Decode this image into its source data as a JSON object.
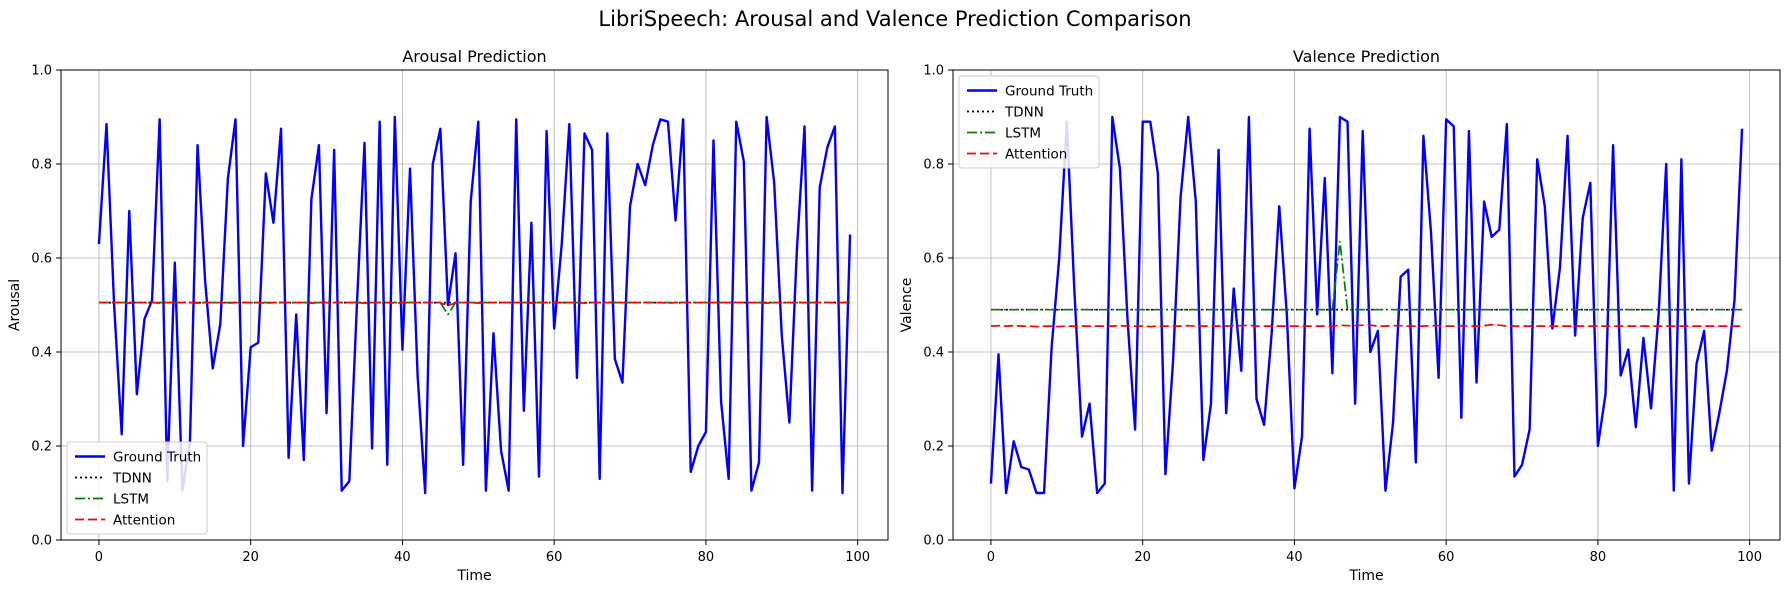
{
  "figure_title": "LibriSpeech: Arousal and Valence Prediction Comparison",
  "colors": {
    "ground_truth": "#0000ff",
    "tdnn": "#000000",
    "lstm": "#008000",
    "attention": "#ff0000",
    "grid": "#b0b0b0"
  },
  "chart_data": [
    {
      "type": "line",
      "title": "Arousal Prediction",
      "xlabel": "Time",
      "ylabel": "Arousal",
      "xlim": [
        -5,
        104
      ],
      "ylim": [
        0,
        1
      ],
      "xticks": [
        0,
        20,
        40,
        60,
        80,
        100
      ],
      "yticks": [
        0.0,
        0.2,
        0.4,
        0.6,
        0.8,
        1.0
      ],
      "xtick_labels": [
        "0",
        "20",
        "40",
        "60",
        "80",
        "100"
      ],
      "ytick_labels": [
        "0.0",
        "0.2",
        "0.4",
        "0.6",
        "0.8",
        "1.0"
      ],
      "grid": true,
      "legend_position": "lower-left",
      "series": [
        {
          "name": "Ground Truth",
          "style": "solid",
          "color": "#0000ff",
          "values": [
            0.63,
            0.885,
            0.5,
            0.225,
            0.7,
            0.31,
            0.47,
            0.51,
            0.895,
            0.125,
            0.59,
            0.105,
            0.21,
            0.84,
            0.55,
            0.365,
            0.46,
            0.77,
            0.895,
            0.2,
            0.41,
            0.42,
            0.78,
            0.675,
            0.875,
            0.175,
            0.48,
            0.17,
            0.725,
            0.84,
            0.27,
            0.83,
            0.105,
            0.125,
            0.5,
            0.845,
            0.195,
            0.89,
            0.16,
            0.9,
            0.405,
            0.79,
            0.35,
            0.1,
            0.8,
            0.875,
            0.5,
            0.61,
            0.16,
            0.72,
            0.89,
            0.105,
            0.44,
            0.19,
            0.105,
            0.895,
            0.275,
            0.675,
            0.135,
            0.87,
            0.45,
            0.63,
            0.885,
            0.345,
            0.865,
            0.83,
            0.13,
            0.865,
            0.385,
            0.335,
            0.71,
            0.8,
            0.755,
            0.84,
            0.895,
            0.89,
            0.68,
            0.895,
            0.145,
            0.2,
            0.23,
            0.85,
            0.295,
            0.13,
            0.89,
            0.805,
            0.105,
            0.165,
            0.9,
            0.76,
            0.435,
            0.25,
            0.62,
            0.88,
            0.105,
            0.75,
            0.835,
            0.88,
            0.1,
            0.65
          ]
        },
        {
          "name": "TDNN",
          "style": "dotted",
          "color": "#000000",
          "values": [
            0.505,
            0.505,
            0.505,
            0.505,
            0.505,
            0.505,
            0.505,
            0.505,
            0.505,
            0.505,
            0.505,
            0.505,
            0.505,
            0.505,
            0.505,
            0.505,
            0.505,
            0.505,
            0.505,
            0.505,
            0.505,
            0.505,
            0.505,
            0.505,
            0.505,
            0.505,
            0.505,
            0.505,
            0.505,
            0.505,
            0.505,
            0.505,
            0.505,
            0.505,
            0.505,
            0.505,
            0.505,
            0.505,
            0.505,
            0.505,
            0.505,
            0.505,
            0.505,
            0.505,
            0.505,
            0.505,
            0.505,
            0.505,
            0.505,
            0.505,
            0.505,
            0.505,
            0.505,
            0.505,
            0.505,
            0.505,
            0.505,
            0.505,
            0.505,
            0.505,
            0.505,
            0.505,
            0.505,
            0.505,
            0.505,
            0.505,
            0.505,
            0.505,
            0.505,
            0.505,
            0.505,
            0.505,
            0.505,
            0.505,
            0.505,
            0.505,
            0.505,
            0.505,
            0.505,
            0.505,
            0.505,
            0.505,
            0.505,
            0.505,
            0.505,
            0.505,
            0.505,
            0.505,
            0.505,
            0.505,
            0.505,
            0.505,
            0.505,
            0.505,
            0.505,
            0.505,
            0.505,
            0.505,
            0.505,
            0.505
          ]
        },
        {
          "name": "LSTM",
          "style": "dashdot",
          "color": "#008000",
          "values": [
            0.505,
            0.505,
            0.505,
            0.505,
            0.505,
            0.505,
            0.505,
            0.505,
            0.505,
            0.505,
            0.505,
            0.505,
            0.505,
            0.505,
            0.505,
            0.505,
            0.505,
            0.505,
            0.505,
            0.505,
            0.505,
            0.505,
            0.505,
            0.505,
            0.505,
            0.505,
            0.505,
            0.505,
            0.505,
            0.505,
            0.505,
            0.505,
            0.505,
            0.505,
            0.505,
            0.505,
            0.505,
            0.505,
            0.505,
            0.505,
            0.505,
            0.505,
            0.505,
            0.505,
            0.505,
            0.505,
            0.48,
            0.505,
            0.505,
            0.505,
            0.505,
            0.505,
            0.505,
            0.505,
            0.505,
            0.505,
            0.505,
            0.505,
            0.505,
            0.505,
            0.505,
            0.505,
            0.505,
            0.505,
            0.505,
            0.505,
            0.505,
            0.505,
            0.505,
            0.505,
            0.505,
            0.505,
            0.505,
            0.505,
            0.505,
            0.505,
            0.505,
            0.505,
            0.505,
            0.505,
            0.505,
            0.505,
            0.505,
            0.505,
            0.505,
            0.505,
            0.505,
            0.505,
            0.505,
            0.505,
            0.505,
            0.505,
            0.505,
            0.505,
            0.505,
            0.505,
            0.505,
            0.505,
            0.505,
            0.505
          ]
        },
        {
          "name": "Attention",
          "style": "dashed",
          "color": "#ff0000",
          "values": [
            0.505,
            0.505,
            0.505,
            0.505,
            0.504,
            0.505,
            0.505,
            0.505,
            0.504,
            0.505,
            0.505,
            0.505,
            0.505,
            0.504,
            0.505,
            0.505,
            0.505,
            0.504,
            0.505,
            0.505,
            0.505,
            0.505,
            0.504,
            0.505,
            0.505,
            0.505,
            0.505,
            0.505,
            0.504,
            0.505,
            0.505,
            0.505,
            0.505,
            0.505,
            0.505,
            0.504,
            0.505,
            0.505,
            0.505,
            0.504,
            0.505,
            0.505,
            0.505,
            0.505,
            0.505,
            0.505,
            0.498,
            0.505,
            0.505,
            0.505,
            0.504,
            0.505,
            0.505,
            0.505,
            0.505,
            0.505,
            0.505,
            0.504,
            0.505,
            0.505,
            0.505,
            0.505,
            0.505,
            0.505,
            0.504,
            0.505,
            0.505,
            0.505,
            0.505,
            0.505,
            0.505,
            0.505,
            0.505,
            0.505,
            0.505,
            0.504,
            0.505,
            0.505,
            0.505,
            0.505,
            0.505,
            0.505,
            0.505,
            0.505,
            0.505,
            0.505,
            0.505,
            0.505,
            0.504,
            0.505,
            0.505,
            0.505,
            0.505,
            0.505,
            0.505,
            0.505,
            0.505,
            0.505,
            0.505,
            0.505
          ]
        }
      ]
    },
    {
      "type": "line",
      "title": "Valence Prediction",
      "xlabel": "Time",
      "ylabel": "Valence",
      "xlim": [
        -5,
        104
      ],
      "ylim": [
        0,
        1
      ],
      "xticks": [
        0,
        20,
        40,
        60,
        80,
        100
      ],
      "yticks": [
        0.0,
        0.2,
        0.4,
        0.6,
        0.8,
        1.0
      ],
      "xtick_labels": [
        "0",
        "20",
        "40",
        "60",
        "80",
        "100"
      ],
      "ytick_labels": [
        "0.0",
        "0.2",
        "0.4",
        "0.6",
        "0.8",
        "1.0"
      ],
      "grid": true,
      "legend_position": "upper-left",
      "series": [
        {
          "name": "Ground Truth",
          "style": "solid",
          "color": "#0000ff",
          "values": [
            0.12,
            0.395,
            0.1,
            0.21,
            0.155,
            0.15,
            0.1,
            0.1,
            0.41,
            0.6,
            0.89,
            0.53,
            0.22,
            0.29,
            0.1,
            0.12,
            0.9,
            0.79,
            0.47,
            0.235,
            0.89,
            0.89,
            0.78,
            0.14,
            0.38,
            0.73,
            0.9,
            0.72,
            0.17,
            0.29,
            0.83,
            0.27,
            0.535,
            0.36,
            0.9,
            0.3,
            0.245,
            0.44,
            0.71,
            0.48,
            0.11,
            0.22,
            0.875,
            0.48,
            0.77,
            0.355,
            0.9,
            0.89,
            0.29,
            0.87,
            0.4,
            0.445,
            0.105,
            0.25,
            0.56,
            0.575,
            0.165,
            0.86,
            0.655,
            0.345,
            0.895,
            0.88,
            0.26,
            0.87,
            0.335,
            0.72,
            0.645,
            0.66,
            0.885,
            0.135,
            0.16,
            0.235,
            0.81,
            0.71,
            0.45,
            0.58,
            0.86,
            0.435,
            0.685,
            0.76,
            0.2,
            0.31,
            0.84,
            0.35,
            0.405,
            0.24,
            0.43,
            0.28,
            0.48,
            0.8,
            0.105,
            0.81,
            0.12,
            0.375,
            0.445,
            0.19,
            0.27,
            0.36,
            0.51,
            0.875
          ]
        },
        {
          "name": "TDNN",
          "style": "dotted",
          "color": "#000000",
          "values": [
            0.49,
            0.49,
            0.49,
            0.49,
            0.49,
            0.49,
            0.49,
            0.49,
            0.49,
            0.49,
            0.49,
            0.49,
            0.49,
            0.49,
            0.49,
            0.49,
            0.49,
            0.49,
            0.49,
            0.49,
            0.49,
            0.49,
            0.49,
            0.49,
            0.49,
            0.49,
            0.49,
            0.49,
            0.49,
            0.49,
            0.49,
            0.49,
            0.49,
            0.49,
            0.49,
            0.49,
            0.49,
            0.49,
            0.49,
            0.49,
            0.49,
            0.49,
            0.49,
            0.49,
            0.49,
            0.49,
            0.49,
            0.49,
            0.49,
            0.49,
            0.49,
            0.49,
            0.49,
            0.49,
            0.49,
            0.49,
            0.49,
            0.49,
            0.49,
            0.49,
            0.49,
            0.49,
            0.49,
            0.49,
            0.49,
            0.49,
            0.49,
            0.49,
            0.49,
            0.49,
            0.49,
            0.49,
            0.49,
            0.49,
            0.49,
            0.49,
            0.49,
            0.49,
            0.49,
            0.49,
            0.49,
            0.49,
            0.49,
            0.49,
            0.49,
            0.49,
            0.49,
            0.49,
            0.49,
            0.49,
            0.49,
            0.49,
            0.49,
            0.49,
            0.49,
            0.49,
            0.49,
            0.49,
            0.49,
            0.49
          ]
        },
        {
          "name": "LSTM",
          "style": "dashdot",
          "color": "#008000",
          "values": [
            0.49,
            0.49,
            0.49,
            0.49,
            0.49,
            0.49,
            0.49,
            0.49,
            0.49,
            0.49,
            0.49,
            0.49,
            0.49,
            0.49,
            0.49,
            0.49,
            0.49,
            0.49,
            0.49,
            0.49,
            0.49,
            0.49,
            0.49,
            0.49,
            0.49,
            0.49,
            0.49,
            0.49,
            0.49,
            0.49,
            0.49,
            0.49,
            0.49,
            0.49,
            0.49,
            0.49,
            0.49,
            0.49,
            0.49,
            0.49,
            0.49,
            0.49,
            0.49,
            0.49,
            0.49,
            0.49,
            0.635,
            0.49,
            0.49,
            0.49,
            0.49,
            0.49,
            0.49,
            0.49,
            0.49,
            0.49,
            0.49,
            0.49,
            0.49,
            0.49,
            0.49,
            0.49,
            0.49,
            0.49,
            0.49,
            0.49,
            0.49,
            0.49,
            0.49,
            0.49,
            0.49,
            0.49,
            0.49,
            0.49,
            0.49,
            0.49,
            0.49,
            0.49,
            0.49,
            0.49,
            0.49,
            0.49,
            0.49,
            0.49,
            0.49,
            0.49,
            0.49,
            0.49,
            0.49,
            0.49,
            0.49,
            0.49,
            0.49,
            0.49,
            0.49,
            0.49,
            0.49,
            0.49,
            0.49,
            0.49
          ]
        },
        {
          "name": "Attention",
          "style": "dashed",
          "color": "#ff0000",
          "values": [
            0.455,
            0.456,
            0.455,
            0.456,
            0.455,
            0.455,
            0.454,
            0.455,
            0.455,
            0.454,
            0.455,
            0.455,
            0.455,
            0.455,
            0.455,
            0.455,
            0.455,
            0.456,
            0.455,
            0.455,
            0.455,
            0.454,
            0.455,
            0.455,
            0.455,
            0.455,
            0.456,
            0.455,
            0.455,
            0.455,
            0.455,
            0.455,
            0.456,
            0.456,
            0.457,
            0.455,
            0.455,
            0.455,
            0.455,
            0.455,
            0.455,
            0.455,
            0.455,
            0.455,
            0.455,
            0.455,
            0.457,
            0.456,
            0.456,
            0.457,
            0.457,
            0.455,
            0.455,
            0.456,
            0.456,
            0.455,
            0.455,
            0.455,
            0.456,
            0.456,
            0.455,
            0.455,
            0.456,
            0.455,
            0.455,
            0.456,
            0.458,
            0.457,
            0.455,
            0.455,
            0.455,
            0.455,
            0.455,
            0.455,
            0.455,
            0.455,
            0.455,
            0.455,
            0.455,
            0.455,
            0.455,
            0.455,
            0.455,
            0.455,
            0.455,
            0.455,
            0.455,
            0.455,
            0.455,
            0.455,
            0.455,
            0.455,
            0.455,
            0.455,
            0.455,
            0.455,
            0.455,
            0.455,
            0.455,
            0.455
          ]
        }
      ]
    }
  ]
}
